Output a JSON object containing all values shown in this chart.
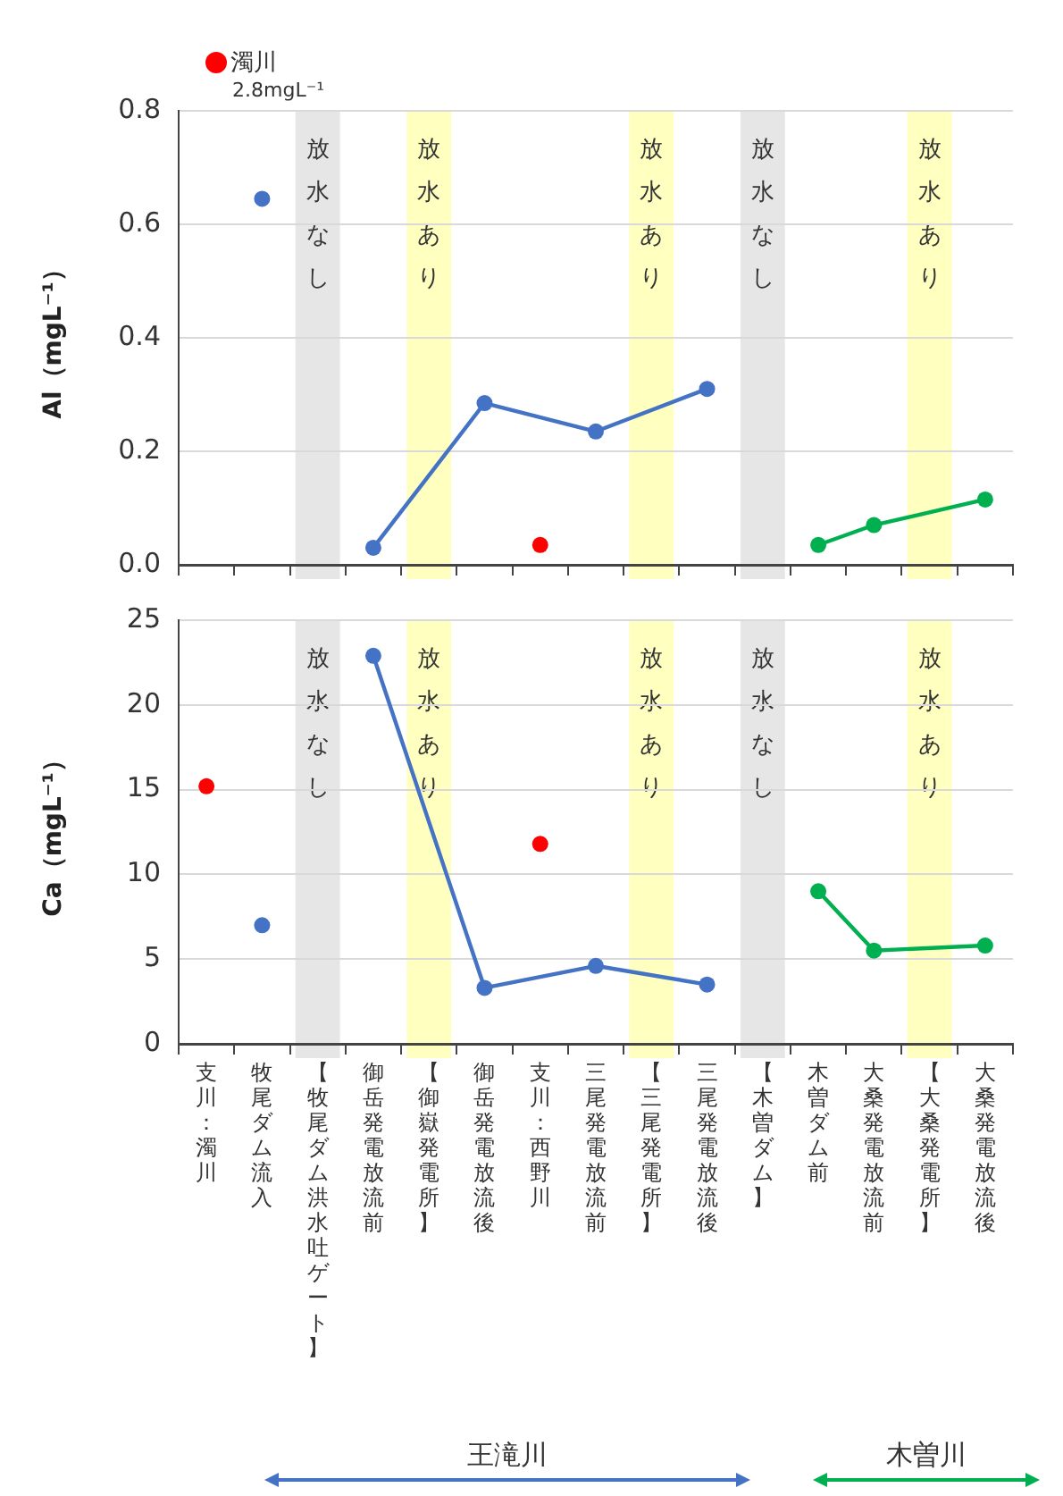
{
  "chart_data": [
    {
      "type": "line",
      "ylabel": "Al（mgL⁻¹）",
      "categories": [
        "支川：濁川",
        "牧尾ダム流入",
        "【牧尾ダム洪水吐ゲート】",
        "御岳発電放流前",
        "【御嶽発電所】",
        "御岳発電放流後",
        "支川：西野川",
        "三尾発電放流前",
        "【三尾発電所】",
        "三尾発電放流後",
        "【木曽ダム】",
        "木曽ダム前",
        "大桑発電放流前",
        "【大桑発電所】",
        "大桑発電放流後"
      ],
      "series": [
        {
          "type": "scatter",
          "color": "#ff0000",
          "values": [
            null,
            null,
            null,
            null,
            null,
            null,
            0.035,
            null,
            null,
            null,
            null,
            null,
            null,
            null,
            null
          ]
        },
        {
          "type": "scatter",
          "color": "#4472c4",
          "values": [
            null,
            0.645,
            null,
            null,
            null,
            null,
            null,
            null,
            null,
            null,
            null,
            null,
            null,
            null,
            null
          ]
        },
        {
          "type": "line",
          "color": "#4472c4",
          "values": [
            null,
            null,
            null,
            0.03,
            null,
            0.285,
            null,
            0.235,
            null,
            0.31,
            null,
            null,
            null,
            null,
            null
          ]
        },
        {
          "type": "line",
          "color": "#00b050",
          "values": [
            null,
            null,
            null,
            null,
            null,
            null,
            null,
            null,
            null,
            null,
            null,
            0.035,
            0.07,
            null,
            0.115
          ]
        }
      ],
      "ylim": [
        0,
        0.8
      ],
      "yticks": [
        {
          "value": 0,
          "label": "0.0"
        },
        {
          "value": 0.2,
          "label": "0.2"
        },
        {
          "value": 0.4,
          "label": "0.4"
        },
        {
          "value": 0.6,
          "label": "0.6"
        },
        {
          "value": 0.8,
          "label": "0.8"
        }
      ],
      "bands": [
        {
          "axis": "x",
          "from": "【牧尾ダム洪水吐ゲート】",
          "to": "【牧尾ダム洪水吐ゲート】",
          "label": "放水なし",
          "color": "#e6e6e6"
        },
        {
          "axis": "x",
          "from": "【御嶽発電所】",
          "to": "【御嶽発電所】",
          "label": "放水あり",
          "color": "#ffffc0"
        },
        {
          "axis": "x",
          "from": "【三尾発電所】",
          "to": "【三尾発電所】",
          "label": "放水あり",
          "color": "#ffffc0"
        },
        {
          "axis": "x",
          "from": "【木曽ダム】",
          "to": "【木曽ダム】",
          "label": "放水なし",
          "color": "#e6e6e6"
        },
        {
          "axis": "x",
          "from": "【大桑発電所】",
          "to": "【大桑発電所】",
          "label": "放水あり",
          "color": "#ffffc0"
        }
      ],
      "annotations": [
        "濁川",
        "2.8mgL⁻¹"
      ],
      "grid": "y",
      "legend": false,
      "marker": "circle",
      "line_style": "solid",
      "tick_labels": "y"
    },
    {
      "type": "line",
      "ylabel": "Ca（mgL⁻¹）",
      "categories": [
        "支川：濁川",
        "牧尾ダム流入",
        "【牧尾ダム洪水吐ゲート】",
        "御岳発電放流前",
        "【御嶽発電所】",
        "御岳発電放流後",
        "支川：西野川",
        "三尾発電放流前",
        "【三尾発電所】",
        "三尾発電放流後",
        "【木曽ダム】",
        "木曽ダム前",
        "大桑発電放流前",
        "【大桑発電所】",
        "大桑発電放流後"
      ],
      "series": [
        {
          "type": "scatter",
          "color": "#ff0000",
          "values": [
            15.2,
            null,
            null,
            null,
            null,
            null,
            11.8,
            null,
            null,
            null,
            null,
            null,
            null,
            null,
            null
          ]
        },
        {
          "type": "scatter",
          "color": "#4472c4",
          "values": [
            null,
            7.0,
            null,
            null,
            null,
            null,
            null,
            null,
            null,
            null,
            null,
            null,
            null,
            null,
            null
          ]
        },
        {
          "type": "line",
          "color": "#4472c4",
          "values": [
            null,
            null,
            null,
            22.9,
            null,
            3.3,
            null,
            4.6,
            null,
            3.5,
            null,
            null,
            null,
            null,
            null
          ]
        },
        {
          "type": "line",
          "color": "#00b050",
          "values": [
            null,
            null,
            null,
            null,
            null,
            null,
            null,
            null,
            null,
            null,
            null,
            9.0,
            5.5,
            null,
            5.8
          ]
        }
      ],
      "ylim": [
        0,
        25
      ],
      "yticks": [
        0,
        5,
        10,
        15,
        20,
        25
      ],
      "bands": [
        {
          "axis": "x",
          "from": "【牧尾ダム洪水吐ゲート】",
          "to": "【牧尾ダム洪水吐ゲート】",
          "label": "放水なし",
          "color": "#e6e6e6"
        },
        {
          "axis": "x",
          "from": "【御嶽発電所】",
          "to": "【御嶽発電所】",
          "label": "放水あり",
          "color": "#ffffc0"
        },
        {
          "axis": "x",
          "from": "【三尾発電所】",
          "to": "【三尾発電所】",
          "label": "放水あり",
          "color": "#ffffc0"
        },
        {
          "axis": "x",
          "from": "【木曽ダム】",
          "to": "【木曽ダム】",
          "label": "放水なし",
          "color": "#e6e6e6"
        },
        {
          "axis": "x",
          "from": "【大桑発電所】",
          "to": "【大桑発電所】",
          "label": "放水あり",
          "color": "#ffffc0"
        }
      ],
      "annotations": [
        "王滝川",
        "木曽川"
      ],
      "grid": "y",
      "legend": false,
      "marker": "circle",
      "line_style": "solid"
    }
  ]
}
